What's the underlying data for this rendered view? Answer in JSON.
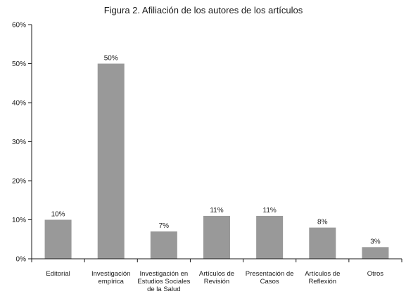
{
  "chart_data": {
    "type": "bar",
    "title": "Figura 2. Afiliación de los autores de los artículos",
    "xlabel": "",
    "ylabel": "",
    "categories": [
      [
        "Editorial"
      ],
      [
        "Investigación",
        "empírica"
      ],
      [
        "Investigación en",
        "Estudios Sociales",
        "de la Salud"
      ],
      [
        "Artículos de",
        "Revisión"
      ],
      [
        "Presentación de",
        "Casos"
      ],
      [
        "Artículos de",
        "Reflexión"
      ],
      [
        "Otros"
      ]
    ],
    "values": [
      10,
      50,
      7,
      11,
      11,
      8,
      3
    ],
    "data_labels": [
      "10%",
      "50%",
      "7%",
      "11%",
      "11%",
      "8%",
      "3%"
    ],
    "y_ticks": [
      "0%",
      "10%",
      "20%",
      "30%",
      "40%",
      "50%",
      "60%"
    ],
    "ylim": [
      0,
      60
    ],
    "grid": false,
    "legend": "none",
    "colors": {
      "bar": "#999999",
      "axis": "#1a1a1a",
      "text": "#1a1a1a"
    }
  }
}
